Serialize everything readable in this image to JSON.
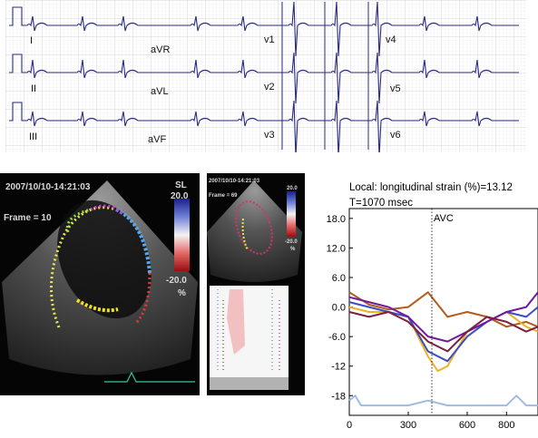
{
  "ecg": {
    "leads": [
      "I",
      "aVR",
      "v1",
      "v4",
      "II",
      "aVL",
      "v2",
      "v5",
      "III",
      "aVF",
      "v3",
      "v6"
    ]
  },
  "echo_main": {
    "timestamp": "2007/10/10-14:21:03",
    "frame_label": "Frame = 10",
    "scale_label": "SL",
    "scale_max": "20.0",
    "scale_min": "-20.0",
    "scale_unit": "%"
  },
  "echo_small": {
    "timestamp": "2007/10/10-14:21:03",
    "frame_label": "Frame = 69",
    "scale_max": "20.0",
    "scale_min": "-20.0",
    "scale_unit": "%"
  },
  "chart_data": {
    "type": "line",
    "title": "Local: longitudinal strain (%)=13.12",
    "subtitle": "T=1070 msec",
    "annotation": "AVC",
    "annotation_x": 420,
    "xlim": [
      0,
      960
    ],
    "ylim": [
      -22,
      20
    ],
    "xticks": [
      "0",
      "300",
      "600",
      "800"
    ],
    "yticks": [
      "18.0",
      "12.0",
      "6.0",
      "0.0",
      "-6.0",
      "-12",
      "-18"
    ],
    "series": [
      {
        "color": "#b35a1f",
        "x": [
          0,
          100,
          200,
          300,
          400,
          500,
          600,
          700,
          800,
          900,
          960
        ],
        "values": [
          3,
          0.5,
          -0.5,
          0,
          3,
          -2,
          -1,
          -2,
          -4,
          -3,
          -4
        ]
      },
      {
        "color": "#ecb32a",
        "x": [
          0,
          100,
          200,
          300,
          400,
          450,
          500,
          600,
          700,
          800,
          900,
          960
        ],
        "values": [
          0,
          -1,
          -1,
          -2,
          -10,
          -13,
          -12,
          -5,
          -3,
          -1,
          -4,
          -5
        ]
      },
      {
        "color": "#3a4ec2",
        "x": [
          0,
          100,
          200,
          300,
          400,
          500,
          600,
          700,
          800,
          900,
          960
        ],
        "values": [
          1,
          0,
          -1,
          -2,
          -9,
          -11,
          -6,
          -3,
          -1,
          -2,
          0
        ]
      },
      {
        "color": "#701a9e",
        "x": [
          0,
          100,
          200,
          300,
          400,
          500,
          600,
          700,
          800,
          900,
          960
        ],
        "values": [
          2,
          1,
          0,
          -2,
          -6,
          -7,
          -5,
          -3,
          -1,
          0,
          3
        ]
      },
      {
        "color": "#7a2040",
        "x": [
          0,
          100,
          200,
          300,
          400,
          500,
          600,
          700,
          800,
          900,
          960
        ],
        "values": [
          -1,
          -2,
          -1,
          -3,
          -7,
          -9,
          -5,
          -2,
          -3,
          -5,
          -4
        ]
      },
      {
        "color": "#9ebbe3",
        "x": [
          0,
          30,
          60,
          100,
          200,
          300,
          400,
          500,
          600,
          700,
          800,
          850,
          900,
          960
        ],
        "values": [
          -19,
          -18,
          -20,
          -20,
          -20,
          -20,
          -19,
          -20,
          -20,
          -20,
          -20,
          -18,
          -20,
          -20
        ]
      }
    ]
  }
}
